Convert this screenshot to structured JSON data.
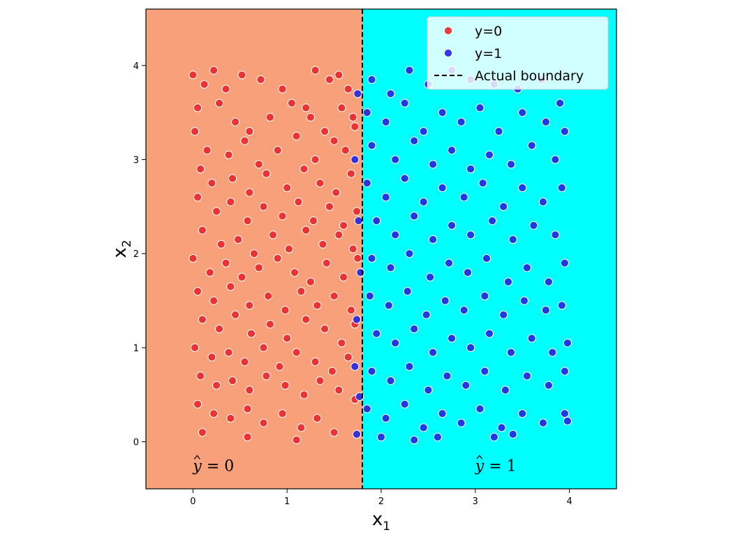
{
  "chart_data": {
    "type": "scatter",
    "xlabel": "x",
    "xlabel_sub": "1",
    "ylabel": "x",
    "ylabel_sub": "2",
    "xlim": [
      -0.5,
      4.5
    ],
    "ylim": [
      -0.5,
      4.6
    ],
    "xticks": [
      0,
      1,
      2,
      3,
      4
    ],
    "yticks": [
      0,
      1,
      2,
      3,
      4
    ],
    "grid": false,
    "legend_position": "top-right",
    "boundary": {
      "name": "Actual boundary",
      "x": 1.8,
      "style": "dashed",
      "color": "#000000"
    },
    "regions": [
      {
        "label_var": "y",
        "label_rest": " = 0",
        "x_from": -0.5,
        "x_to": 1.8,
        "color": "#f8a07a",
        "label_x": 0.0,
        "label_y": -0.25
      },
      {
        "label_var": "y",
        "label_rest": " = 1",
        "x_from": 1.8,
        "x_to": 4.5,
        "color": "#00ffff",
        "label_x": 3.0,
        "label_y": -0.25
      }
    ],
    "series": [
      {
        "name": "y=0",
        "color": "#e8272a",
        "points": [
          [
            0.0,
            3.9
          ],
          [
            0.12,
            3.8
          ],
          [
            0.22,
            3.95
          ],
          [
            0.35,
            3.75
          ],
          [
            0.52,
            3.9
          ],
          [
            0.72,
            3.85
          ],
          [
            0.95,
            3.75
          ],
          [
            1.2,
            3.55
          ],
          [
            1.3,
            3.95
          ],
          [
            1.45,
            3.85
          ],
          [
            1.55,
            3.9
          ],
          [
            1.65,
            3.75
          ],
          [
            0.05,
            3.55
          ],
          [
            0.28,
            3.6
          ],
          [
            0.45,
            3.4
          ],
          [
            0.6,
            3.3
          ],
          [
            0.82,
            3.45
          ],
          [
            1.05,
            3.6
          ],
          [
            1.25,
            3.45
          ],
          [
            1.4,
            3.3
          ],
          [
            1.58,
            3.55
          ],
          [
            1.7,
            3.45
          ],
          [
            0.02,
            3.3
          ],
          [
            0.15,
            3.1
          ],
          [
            0.38,
            3.05
          ],
          [
            0.55,
            3.2
          ],
          [
            0.7,
            2.95
          ],
          [
            0.9,
            3.1
          ],
          [
            1.1,
            3.25
          ],
          [
            1.3,
            3.0
          ],
          [
            1.5,
            3.2
          ],
          [
            1.62,
            3.1
          ],
          [
            1.72,
            3.35
          ],
          [
            0.08,
            2.9
          ],
          [
            0.2,
            2.75
          ],
          [
            0.42,
            2.8
          ],
          [
            0.6,
            2.65
          ],
          [
            0.78,
            2.85
          ],
          [
            1.0,
            2.7
          ],
          [
            1.18,
            2.9
          ],
          [
            1.35,
            2.75
          ],
          [
            1.52,
            2.65
          ],
          [
            1.68,
            2.85
          ],
          [
            0.05,
            2.6
          ],
          [
            0.25,
            2.45
          ],
          [
            0.4,
            2.55
          ],
          [
            0.58,
            2.35
          ],
          [
            0.75,
            2.5
          ],
          [
            0.95,
            2.4
          ],
          [
            1.12,
            2.55
          ],
          [
            1.28,
            2.35
          ],
          [
            1.45,
            2.5
          ],
          [
            1.6,
            2.3
          ],
          [
            1.74,
            2.45
          ],
          [
            0.1,
            2.25
          ],
          [
            0.3,
            2.1
          ],
          [
            0.48,
            2.15
          ],
          [
            0.65,
            2.0
          ],
          [
            0.85,
            2.2
          ],
          [
            1.02,
            2.05
          ],
          [
            1.2,
            2.25
          ],
          [
            1.38,
            2.1
          ],
          [
            1.55,
            2.2
          ],
          [
            1.7,
            2.05
          ],
          [
            0.0,
            1.95
          ],
          [
            0.18,
            1.8
          ],
          [
            0.35,
            1.9
          ],
          [
            0.52,
            1.75
          ],
          [
            0.7,
            1.85
          ],
          [
            0.9,
            1.95
          ],
          [
            1.08,
            1.8
          ],
          [
            1.25,
            1.7
          ],
          [
            1.42,
            1.9
          ],
          [
            1.6,
            1.75
          ],
          [
            1.75,
            1.95
          ],
          [
            0.05,
            1.6
          ],
          [
            0.22,
            1.5
          ],
          [
            0.4,
            1.65
          ],
          [
            0.6,
            1.45
          ],
          [
            0.8,
            1.55
          ],
          [
            0.98,
            1.4
          ],
          [
            1.15,
            1.6
          ],
          [
            1.32,
            1.45
          ],
          [
            1.5,
            1.55
          ],
          [
            1.68,
            1.4
          ],
          [
            0.1,
            1.3
          ],
          [
            0.28,
            1.2
          ],
          [
            0.45,
            1.35
          ],
          [
            0.62,
            1.15
          ],
          [
            0.82,
            1.25
          ],
          [
            1.0,
            1.1
          ],
          [
            1.2,
            1.3
          ],
          [
            1.4,
            1.2
          ],
          [
            1.58,
            1.05
          ],
          [
            1.72,
            1.25
          ],
          [
            0.02,
            1.0
          ],
          [
            0.2,
            0.9
          ],
          [
            0.38,
            0.95
          ],
          [
            0.55,
            0.85
          ],
          [
            0.75,
            1.0
          ],
          [
            0.92,
            0.8
          ],
          [
            1.1,
            0.95
          ],
          [
            1.3,
            0.85
          ],
          [
            1.48,
            0.75
          ],
          [
            1.65,
            0.9
          ],
          [
            0.08,
            0.7
          ],
          [
            0.25,
            0.6
          ],
          [
            0.42,
            0.65
          ],
          [
            0.6,
            0.55
          ],
          [
            0.78,
            0.7
          ],
          [
            0.98,
            0.6
          ],
          [
            1.18,
            0.5
          ],
          [
            1.35,
            0.65
          ],
          [
            1.55,
            0.55
          ],
          [
            1.72,
            0.45
          ],
          [
            0.05,
            0.4
          ],
          [
            0.22,
            0.3
          ],
          [
            0.4,
            0.25
          ],
          [
            0.58,
            0.35
          ],
          [
            0.75,
            0.2
          ],
          [
            0.95,
            0.3
          ],
          [
            1.15,
            0.15
          ],
          [
            1.32,
            0.25
          ],
          [
            1.5,
            0.1
          ],
          [
            0.1,
            0.1
          ],
          [
            0.58,
            0.05
          ],
          [
            1.1,
            0.02
          ]
        ]
      },
      {
        "name": "y=1",
        "color": "#2323e0",
        "points": [
          [
            1.75,
            3.7
          ],
          [
            1.72,
            3.0
          ],
          [
            1.76,
            2.35
          ],
          [
            1.78,
            1.8
          ],
          [
            1.74,
            1.3
          ],
          [
            1.72,
            0.8
          ],
          [
            1.77,
            0.48
          ],
          [
            1.74,
            0.08
          ],
          [
            1.9,
            3.85
          ],
          [
            2.1,
            3.7
          ],
          [
            2.3,
            3.95
          ],
          [
            2.5,
            3.8
          ],
          [
            2.75,
            3.95
          ],
          [
            2.95,
            3.85
          ],
          [
            3.2,
            3.8
          ],
          [
            3.45,
            3.75
          ],
          [
            3.7,
            3.85
          ],
          [
            3.9,
            3.6
          ],
          [
            1.85,
            3.5
          ],
          [
            2.05,
            3.4
          ],
          [
            2.25,
            3.6
          ],
          [
            2.45,
            3.3
          ],
          [
            2.65,
            3.5
          ],
          [
            2.85,
            3.4
          ],
          [
            3.05,
            3.55
          ],
          [
            3.25,
            3.3
          ],
          [
            3.5,
            3.5
          ],
          [
            3.75,
            3.4
          ],
          [
            3.95,
            3.3
          ],
          [
            1.9,
            3.15
          ],
          [
            2.15,
            3.0
          ],
          [
            2.35,
            3.2
          ],
          [
            2.55,
            2.95
          ],
          [
            2.75,
            3.1
          ],
          [
            2.95,
            2.9
          ],
          [
            3.15,
            3.05
          ],
          [
            3.38,
            2.95
          ],
          [
            3.6,
            3.15
          ],
          [
            3.85,
            3.0
          ],
          [
            1.85,
            2.75
          ],
          [
            2.05,
            2.6
          ],
          [
            2.25,
            2.8
          ],
          [
            2.45,
            2.55
          ],
          [
            2.65,
            2.7
          ],
          [
            2.88,
            2.6
          ],
          [
            3.08,
            2.75
          ],
          [
            3.3,
            2.5
          ],
          [
            3.5,
            2.7
          ],
          [
            3.72,
            2.55
          ],
          [
            3.92,
            2.7
          ],
          [
            1.95,
            2.35
          ],
          [
            2.15,
            2.2
          ],
          [
            2.35,
            2.4
          ],
          [
            2.55,
            2.15
          ],
          [
            2.75,
            2.3
          ],
          [
            2.95,
            2.2
          ],
          [
            3.18,
            2.35
          ],
          [
            3.4,
            2.15
          ],
          [
            3.62,
            2.3
          ],
          [
            3.85,
            2.2
          ],
          [
            1.9,
            1.95
          ],
          [
            2.1,
            1.85
          ],
          [
            2.3,
            2.0
          ],
          [
            2.52,
            1.75
          ],
          [
            2.72,
            1.9
          ],
          [
            2.92,
            1.8
          ],
          [
            3.12,
            1.95
          ],
          [
            3.35,
            1.7
          ],
          [
            3.55,
            1.85
          ],
          [
            3.78,
            1.7
          ],
          [
            3.95,
            1.9
          ],
          [
            1.88,
            1.55
          ],
          [
            2.08,
            1.45
          ],
          [
            2.28,
            1.6
          ],
          [
            2.48,
            1.35
          ],
          [
            2.68,
            1.5
          ],
          [
            2.88,
            1.4
          ],
          [
            3.1,
            1.55
          ],
          [
            3.3,
            1.35
          ],
          [
            3.52,
            1.5
          ],
          [
            3.75,
            1.4
          ],
          [
            3.92,
            1.45
          ],
          [
            1.95,
            1.15
          ],
          [
            2.15,
            1.05
          ],
          [
            2.35,
            1.2
          ],
          [
            2.55,
            0.95
          ],
          [
            2.75,
            1.1
          ],
          [
            2.95,
            1.0
          ],
          [
            3.15,
            1.15
          ],
          [
            3.38,
            0.95
          ],
          [
            3.6,
            1.1
          ],
          [
            3.82,
            0.95
          ],
          [
            3.98,
            1.05
          ],
          [
            1.9,
            0.75
          ],
          [
            2.1,
            0.65
          ],
          [
            2.3,
            0.8
          ],
          [
            2.5,
            0.55
          ],
          [
            2.7,
            0.7
          ],
          [
            2.9,
            0.6
          ],
          [
            3.1,
            0.75
          ],
          [
            3.32,
            0.55
          ],
          [
            3.55,
            0.7
          ],
          [
            3.78,
            0.6
          ],
          [
            3.95,
            0.75
          ],
          [
            1.85,
            0.35
          ],
          [
            2.05,
            0.25
          ],
          [
            2.25,
            0.4
          ],
          [
            2.45,
            0.15
          ],
          [
            2.65,
            0.3
          ],
          [
            2.85,
            0.2
          ],
          [
            3.05,
            0.35
          ],
          [
            3.28,
            0.15
          ],
          [
            3.5,
            0.3
          ],
          [
            3.72,
            0.2
          ],
          [
            3.95,
            0.3
          ],
          [
            2.0,
            0.05
          ],
          [
            2.35,
            0.02
          ],
          [
            2.6,
            0.05
          ],
          [
            3.2,
            0.05
          ],
          [
            3.4,
            0.08
          ],
          [
            3.98,
            0.22
          ]
        ]
      }
    ]
  }
}
